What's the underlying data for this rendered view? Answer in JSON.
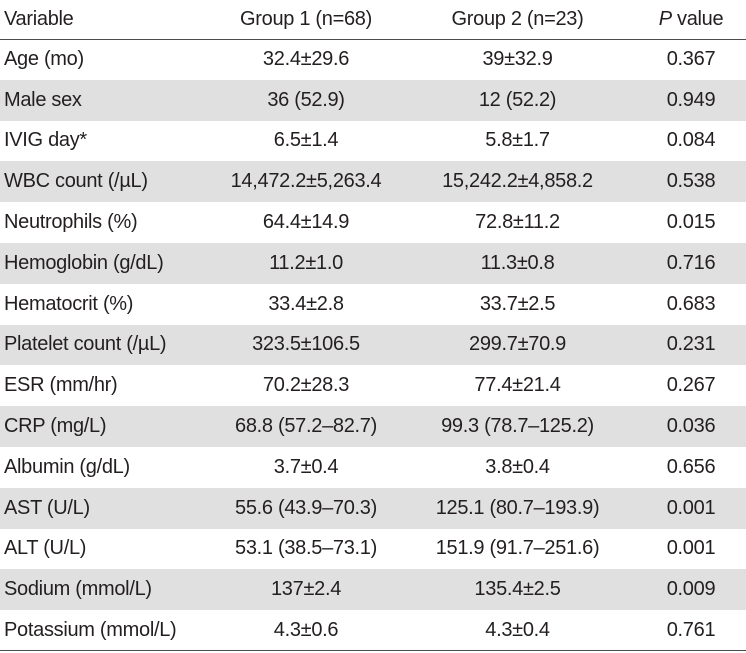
{
  "header": {
    "variable": "Variable",
    "group1": "Group 1 (n=68)",
    "group2": "Group 2 (n=23)",
    "p_italic": "P",
    "p_rest": " value"
  },
  "rows": [
    {
      "variable": "Age (mo)",
      "group1": "32.4±29.6",
      "group2": "39±32.9",
      "p": "0.367"
    },
    {
      "variable": "Male sex",
      "group1": "36 (52.9)",
      "group2": "12 (52.2)",
      "p": "0.949"
    },
    {
      "variable": "IVIG day*",
      "group1": "6.5±1.4",
      "group2": "5.8±1.7",
      "p": "0.084"
    },
    {
      "variable": "WBC count (/µL)",
      "group1": "14,472.2±5,263.4",
      "group2": "15,242.2±4,858.2",
      "p": "0.538"
    },
    {
      "variable": "Neutrophils (%)",
      "group1": "64.4±14.9",
      "group2": "72.8±11.2",
      "p": "0.015"
    },
    {
      "variable": "Hemoglobin (g/dL)",
      "group1": "11.2±1.0",
      "group2": "11.3±0.8",
      "p": "0.716"
    },
    {
      "variable": "Hematocrit (%)",
      "group1": "33.4±2.8",
      "group2": "33.7±2.5",
      "p": "0.683"
    },
    {
      "variable": "Platelet count (/µL)",
      "group1": "323.5±106.5",
      "group2": "299.7±70.9",
      "p": "0.231"
    },
    {
      "variable": "ESR (mm/hr)",
      "group1": "70.2±28.3",
      "group2": "77.4±21.4",
      "p": "0.267"
    },
    {
      "variable": "CRP (mg/L)",
      "group1": "68.8 (57.2–82.7)",
      "group2": "99.3 (78.7–125.2)",
      "p": "0.036"
    },
    {
      "variable": "Albumin (g/dL)",
      "group1": "3.7±0.4",
      "group2": "3.8±0.4",
      "p": "0.656"
    },
    {
      "variable": "AST (U/L)",
      "group1": "55.6 (43.9–70.3)",
      "group2": "125.1 (80.7–193.9)",
      "p": "0.001"
    },
    {
      "variable": "ALT (U/L)",
      "group1": "53.1 (38.5–73.1)",
      "group2": "151.9 (91.7–251.6)",
      "p": "0.001"
    },
    {
      "variable": "Sodium (mmol/L)",
      "group1": "137±2.4",
      "group2": "135.4±2.5",
      "p": "0.009"
    },
    {
      "variable": "Potassium (mmol/L)",
      "group1": "4.3±0.6",
      "group2": "4.3±0.4",
      "p": "0.761"
    }
  ]
}
